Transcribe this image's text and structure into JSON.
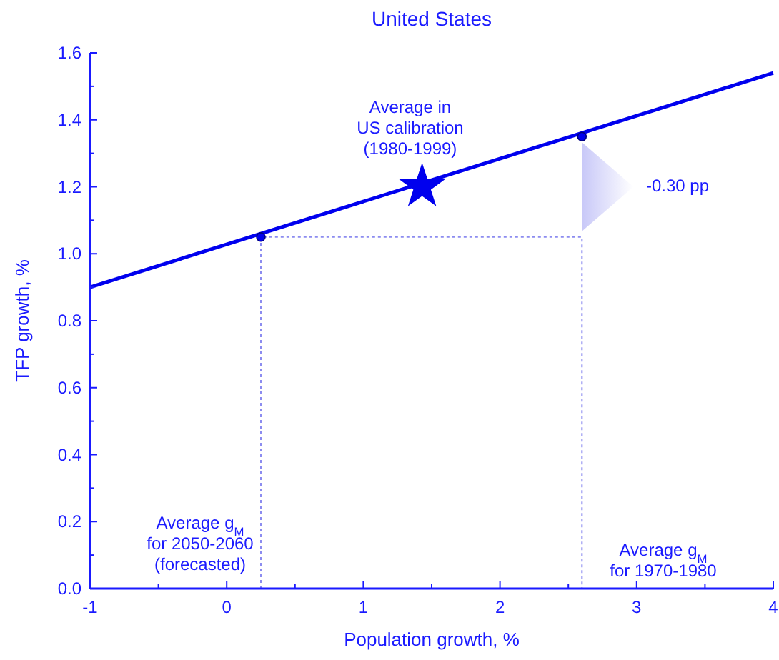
{
  "chart_data": {
    "type": "line",
    "title": "United States",
    "xlabel": "Population growth, %",
    "ylabel": "TFP growth, %",
    "xlim": [
      -1,
      4
    ],
    "ylim": [
      0,
      1.6
    ],
    "xticks": [
      -1,
      {
        "value": -0.5,
        "label": null
      },
      0,
      {
        "value": 0.5,
        "label": null
      },
      1,
      {
        "value": 1.5,
        "label": null
      },
      2,
      {
        "value": 2.5,
        "label": null
      },
      3,
      {
        "value": 3.5,
        "label": null
      },
      4
    ],
    "yticks": [
      {
        "value": 0,
        "label": "0.0"
      },
      {
        "value": 0.1,
        "label": null
      },
      {
        "value": 0.2,
        "label": "0.2"
      },
      {
        "value": 0.3,
        "label": null
      },
      {
        "value": 0.4,
        "label": "0.4"
      },
      {
        "value": 0.5,
        "label": null
      },
      {
        "value": 0.6,
        "label": "0.6"
      },
      {
        "value": 0.7,
        "label": null
      },
      {
        "value": 0.8,
        "label": "0.8"
      },
      {
        "value": 0.9,
        "label": null
      },
      {
        "value": 1.0,
        "label": "1.0"
      },
      {
        "value": 1.1,
        "label": null
      },
      {
        "value": 1.2,
        "label": "1.2"
      },
      {
        "value": 1.3,
        "label": null
      },
      {
        "value": 1.4,
        "label": "1.4"
      },
      {
        "value": 1.5,
        "label": null
      },
      {
        "value": 1.6,
        "label": "1.6"
      }
    ],
    "grid": false,
    "series": [
      {
        "color": "#0000ee",
        "x": [
          -1,
          4
        ],
        "values": [
          0.9,
          1.54
        ],
        "line_style": "solid"
      },
      {
        "color": "#8c8cf0",
        "x": [
          0.25,
          0.25,
          2.6,
          2.6
        ],
        "values": [
          0,
          1.05,
          1.05,
          0
        ],
        "line_style": "dotted"
      },
      {
        "type": "scatter",
        "color": "#0000ee",
        "x": [
          0.25,
          2.6
        ],
        "values": [
          1.05,
          1.35
        ],
        "marker": "circle"
      },
      {
        "type": "scatter",
        "color": "#0000ee",
        "x": [
          1.43
        ],
        "values": [
          1.2
        ],
        "marker": "star"
      }
    ],
    "annotations": [
      "Average in\nUS calibration\n(1980-1999)",
      "-0.30 pp",
      "Average g$_{M}$\nfor 2050-2060\n(forecasted)",
      "Average g$_{M}$\nfor 1970-1980"
    ]
  }
}
